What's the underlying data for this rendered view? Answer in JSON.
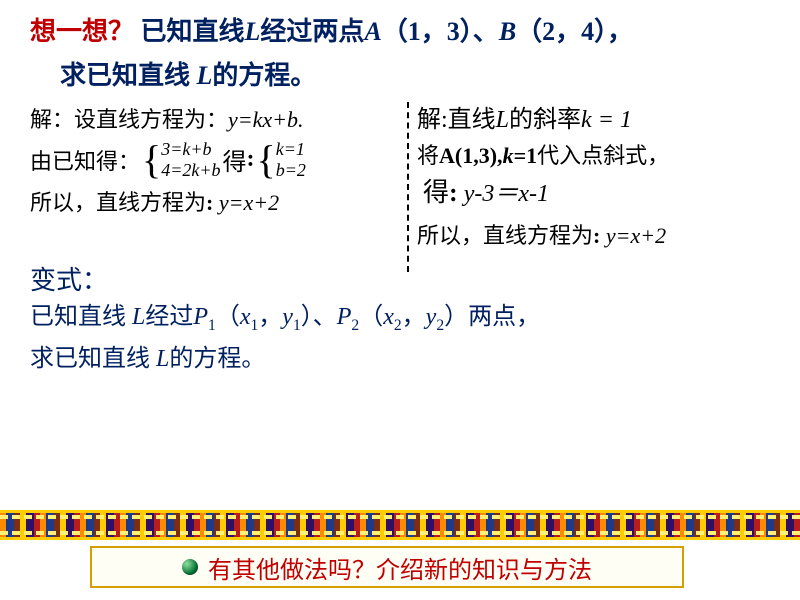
{
  "header": {
    "think": "想一想？",
    "question_part1": "已知直线",
    "L": "L",
    "question_part2": "经过两点",
    "A_label": "A",
    "A_coords": "（1，3）",
    "sep": "、",
    "B_label": "B",
    "B_coords": "（2，4）",
    "tail": "，",
    "line2_a": "求已知直线 ",
    "line2_b": "的方程。"
  },
  "left": {
    "l1a": "解：设直线方程为：",
    "l1b": "y=kx+b.",
    "l2a": "由已知得：",
    "sys1a": "3=k+b",
    "sys1b": "4=2k+b",
    "l2b": "得",
    "colon": ":",
    "sys2a": "k=1",
    "sys2b": "b=2",
    "l3a": "所以，直线方程为",
    "l3b": "y=x+2"
  },
  "right": {
    "l1a": "解",
    "l1b": "直线",
    "l1c": "的斜率",
    "k_eq": "k",
    "eq1": " = 1",
    "l2a": "将",
    "l2b": "A(1,3),",
    "l2c": "k",
    "l2d": "=1",
    "l2e": "代入点斜式，",
    "l3a": "得",
    "l3b": "y-3＝x-1",
    "l4a": "所以，直线方程为",
    "l4b": "y=x+2"
  },
  "variant": {
    "title": "变式：",
    "l1a": "已知直线 ",
    "l1b": "经过",
    "P1": "P",
    "sub1": "1",
    "p1_open": "（",
    "x1": "x",
    "y1": "y",
    "p1_close": "）",
    "comma_cn": "，",
    "sep": "、",
    "P2": "P",
    "sub2": "2",
    "x2": "x",
    "y2": "y",
    "l1c": "两点，",
    "l2a": "求已知直线 ",
    "l2b": "的方程。"
  },
  "bottom": {
    "text": "有其他做法吗？介绍新的知识与方法"
  },
  "colors": {
    "red": "#c00000",
    "navy": "#002060",
    "black": "#000000",
    "box_border": "#d4a000"
  }
}
